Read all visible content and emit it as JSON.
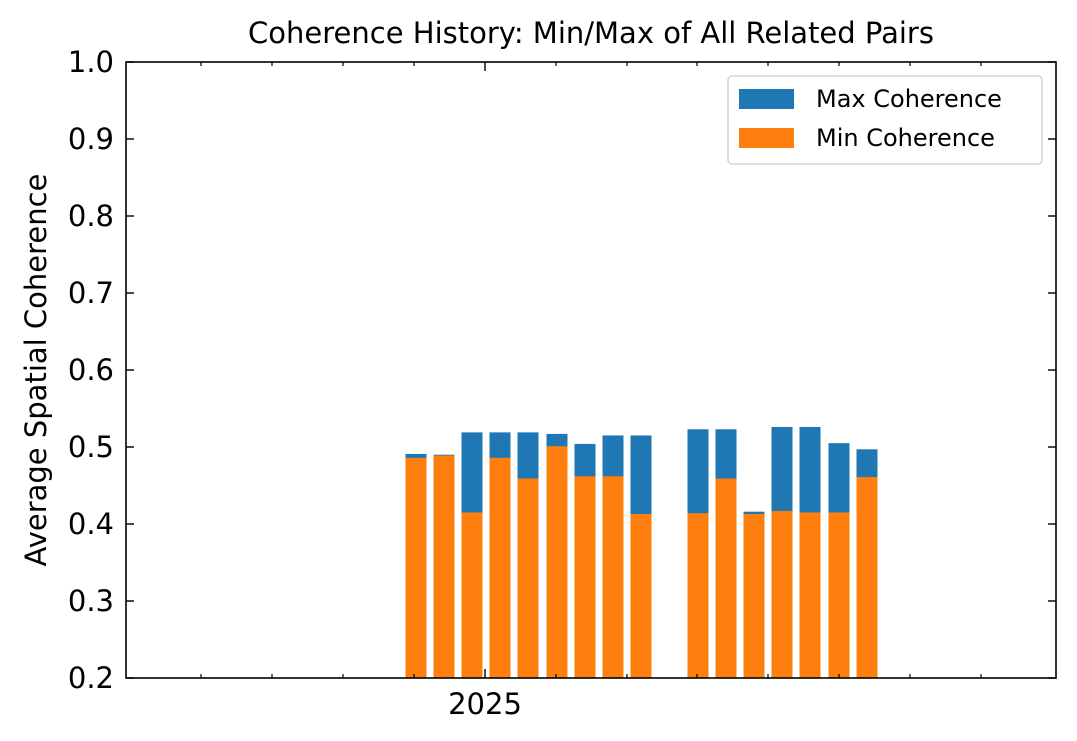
{
  "chart_data": {
    "type": "bar",
    "title": "Coherence History: Min/Max of All Related Pairs",
    "xlabel": "",
    "ylabel": "Average Spatial Coherence",
    "ylim": [
      0.2,
      1.0
    ],
    "yticks": [
      "0.2",
      "0.3",
      "0.4",
      "0.5",
      "0.6",
      "0.7",
      "0.8",
      "0.9",
      "1.0"
    ],
    "xticks": [
      "2025"
    ],
    "legend_position": "top-right",
    "grid": false,
    "series": [
      {
        "name": "Max Coherence",
        "color": "#1f77b4",
        "values": [
          0.491,
          0.49,
          0.519,
          0.519,
          0.519,
          0.517,
          0.504,
          0.515,
          0.515,
          0.523,
          0.523,
          0.416,
          0.526,
          0.526,
          0.505,
          0.497
        ]
      },
      {
        "name": "Min Coherence",
        "color": "#ff7f0e",
        "values": [
          0.486,
          0.489,
          0.415,
          0.486,
          0.459,
          0.501,
          0.462,
          0.462,
          0.413,
          0.414,
          0.459,
          0.413,
          0.417,
          0.415,
          0.415,
          0.461
        ]
      }
    ]
  }
}
